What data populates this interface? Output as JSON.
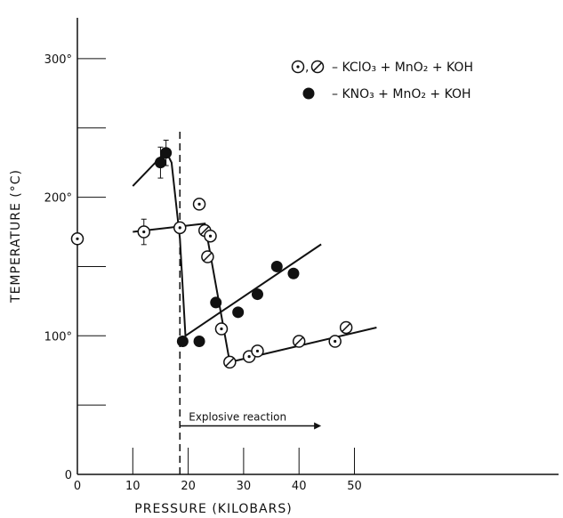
{
  "chart_data": {
    "type": "scatter",
    "title": "",
    "xlabel": "PRESSURE (KILOBARS)",
    "ylabel": "TEMPERATURE (°C)",
    "xlim": [
      0,
      70
    ],
    "ylim": [
      0,
      340
    ],
    "x_ticks": [
      {
        "value": 0,
        "label": "0"
      },
      {
        "value": 10,
        "label": "10"
      },
      {
        "value": 20,
        "label": "20"
      },
      {
        "value": 30,
        "label": "30"
      },
      {
        "value": 40,
        "label": "40"
      },
      {
        "value": 50,
        "label": "50"
      }
    ],
    "y_ticks": [
      {
        "value": 0,
        "label": "0"
      },
      {
        "value": 50,
        "label": ""
      },
      {
        "value": 100,
        "label": "100°"
      },
      {
        "value": 150,
        "label": ""
      },
      {
        "value": 200,
        "label": "200°"
      },
      {
        "value": 250,
        "label": ""
      },
      {
        "value": 300,
        "label": "300°"
      }
    ],
    "grid": false,
    "legend_position": "top-right",
    "legend": [
      {
        "symbols": "⊙,⊘",
        "text": "– KClO₃ + MnO₂ + KOH"
      },
      {
        "symbols": "●",
        "text": "– KNO₃ + MnO₂ + KOH"
      }
    ],
    "series": [
      {
        "points": [
          {
            "x": 0,
            "y": 170,
            "m": "dot"
          },
          {
            "x": 12,
            "y": 175,
            "m": "dot",
            "err": 5
          },
          {
            "x": 18.5,
            "y": 178,
            "m": "dot"
          },
          {
            "x": 22,
            "y": 195,
            "m": "dot"
          },
          {
            "x": 23,
            "y": 176,
            "m": "slash"
          },
          {
            "x": 24,
            "y": 172,
            "m": "dot"
          },
          {
            "x": 23.5,
            "y": 157,
            "m": "slash"
          },
          {
            "x": 26,
            "y": 105,
            "m": "dot"
          },
          {
            "x": 27.5,
            "y": 81,
            "m": "slash"
          },
          {
            "x": 31,
            "y": 85,
            "m": "dot"
          },
          {
            "x": 32.5,
            "y": 89,
            "m": "dot"
          },
          {
            "x": 40,
            "y": 96,
            "m": "slash"
          },
          {
            "x": 46.5,
            "y": 96,
            "m": "dot"
          },
          {
            "x": 48.5,
            "y": 106,
            "m": "slash"
          }
        ]
      },
      {
        "points": [
          {
            "x": 15,
            "y": 225,
            "m": "filled",
            "err": 7
          },
          {
            "x": 16,
            "y": 232,
            "m": "filled",
            "err": 5
          },
          {
            "x": 19,
            "y": 96,
            "m": "filled"
          },
          {
            "x": 22,
            "y": 96,
            "m": "filled"
          },
          {
            "x": 25,
            "y": 124,
            "m": "filled"
          },
          {
            "x": 29,
            "y": 117,
            "m": "filled"
          },
          {
            "x": 32.5,
            "y": 130,
            "m": "filled"
          },
          {
            "x": 36,
            "y": 150,
            "m": "filled"
          },
          {
            "x": 39,
            "y": 145,
            "m": "filled"
          }
        ]
      }
    ],
    "fit_lines": [
      [
        [
          10,
          208
        ],
        [
          16,
          233
        ],
        [
          17,
          225
        ],
        [
          18.5,
          170
        ],
        [
          19.5,
          100
        ],
        [
          44,
          166
        ]
      ],
      [
        [
          10,
          175
        ],
        [
          23,
          181
        ],
        [
          27.5,
          81
        ],
        [
          54,
          106
        ]
      ]
    ],
    "annotations": [
      {
        "kind": "vline",
        "x": 18.5,
        "style": "dashed"
      },
      {
        "kind": "arrow",
        "x0": 18.5,
        "x1": 44,
        "y": 35,
        "text": "Explosive reaction"
      }
    ]
  }
}
